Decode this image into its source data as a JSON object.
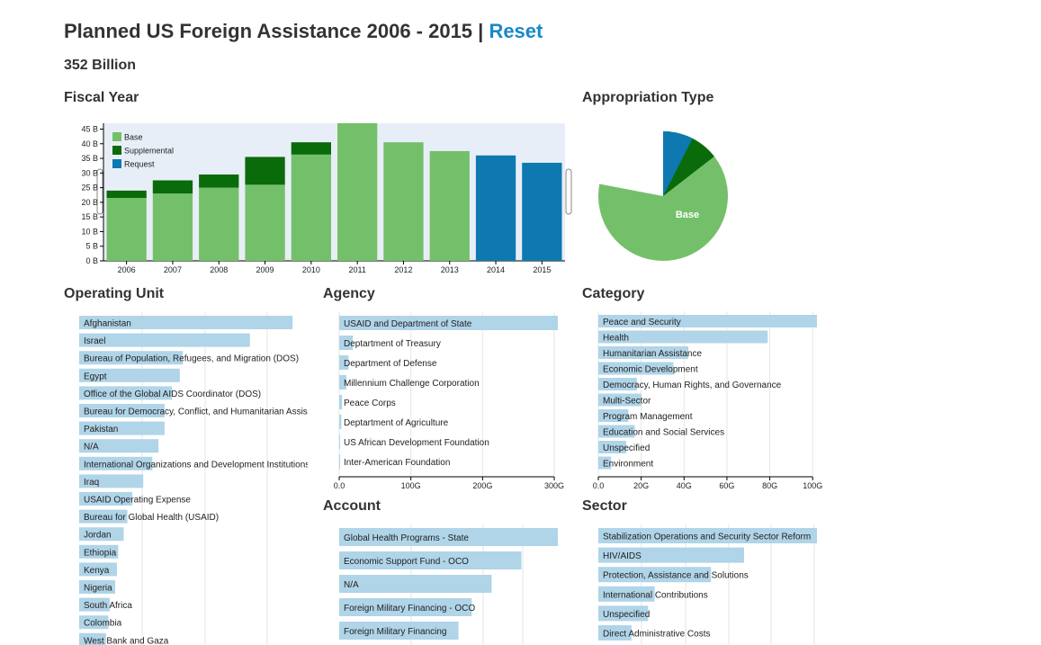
{
  "header": {
    "title": "Planned US Foreign Assistance 2006 - 2015 |",
    "reset_label": "Reset",
    "total": "352 Billion"
  },
  "colors": {
    "base": "#74c06a",
    "supplemental": "#0a6b0a",
    "request": "#0d79b0",
    "row_bar": "#b0d4e8",
    "chart_bg": "#e8eef8",
    "grid": "#e6e6e6"
  },
  "sections": {
    "fiscal_year": "Fiscal Year",
    "appropriation_type": "Appropriation Type",
    "operating_unit": "Operating Unit",
    "agency": "Agency",
    "category": "Category",
    "account": "Account",
    "sector": "Sector"
  },
  "chart_data": [
    {
      "id": "fiscal_year",
      "type": "bar",
      "stacked": true,
      "title": "Fiscal Year",
      "categories": [
        "2006",
        "2007",
        "2008",
        "2009",
        "2010",
        "2011",
        "2012",
        "2013",
        "2014",
        "2015"
      ],
      "series": [
        {
          "name": "Base",
          "values": [
            21.5,
            23,
            25,
            26,
            36.3,
            47,
            40.5,
            37.5,
            0,
            0
          ]
        },
        {
          "name": "Supplemental",
          "values": [
            2.5,
            4.5,
            4.5,
            9.5,
            4.2,
            0,
            0,
            0,
            0,
            0
          ]
        },
        {
          "name": "Request",
          "values": [
            0,
            0,
            0,
            0,
            0,
            0,
            0,
            0,
            36,
            33.5
          ]
        }
      ],
      "yticks": [
        "0 B",
        "5 B",
        "10 B",
        "15 B",
        "20 B",
        "25 B",
        "30 B",
        "35 B",
        "40 B",
        "45 B"
      ],
      "ylim": [
        0,
        47
      ],
      "legend": "top-left",
      "grid": false
    },
    {
      "id": "appropriation_type",
      "type": "pie",
      "title": "Appropriation Type",
      "labels": [
        "Base",
        "Supplemental",
        "Request"
      ],
      "values": [
        78,
        14.5,
        7.5
      ],
      "slice_labels": [
        "Base",
        "",
        "Request"
      ]
    },
    {
      "id": "operating_unit",
      "type": "bar",
      "orientation": "horizontal",
      "title": "Operating Unit",
      "categories": [
        "Afghanistan",
        "Israel",
        "Bureau of Population, Refugees, and Migration (DOS)",
        "Egypt",
        "Office of the Global AIDS Coordinator (DOS)",
        "Bureau for Democracy, Conflict, and Humanitarian Assis",
        "Pakistan",
        "N/A",
        "International Organizations and Development Institutions",
        "Iraq",
        "USAID Operating Expense",
        "Bureau for Global Health (USAID)",
        "Jordan",
        "Ethiopia",
        "Kenya",
        "Nigeria",
        "South Africa",
        "Colombia",
        "West Bank and Gaza"
      ],
      "values": [
        35,
        28,
        17,
        16.5,
        15.2,
        14,
        14,
        13,
        12,
        10.5,
        8.7,
        7.9,
        7.3,
        6.4,
        6.2,
        5.9,
        5,
        4.8,
        4.4
      ],
      "xlim": [
        0,
        36
      ],
      "grid": true
    },
    {
      "id": "agency",
      "type": "bar",
      "orientation": "horizontal",
      "title": "Agency",
      "categories": [
        "USAID and Department of State",
        "Deptartment of Treasury",
        "Department of Defense",
        "Millennium Challenge Corporation",
        "Peace Corps",
        "Deptartment of Agriculture",
        "US African Development Foundation",
        "Inter-American Foundation"
      ],
      "values": [
        305,
        19,
        13,
        10,
        4,
        3,
        1,
        0.5
      ],
      "xticks": [
        "0.0",
        "100G",
        "200G",
        "300G"
      ],
      "xlim": [
        0,
        305
      ],
      "grid": true
    },
    {
      "id": "category",
      "type": "bar",
      "orientation": "horizontal",
      "title": "Category",
      "categories": [
        "Peace and Security",
        "Health",
        "Humanitarian Assistance",
        "Economic Development",
        "Democracy, Human Rights, and Governance",
        "Multi-Sector",
        "Program Management",
        "Education and Social Services",
        "Unspecified",
        "Environment"
      ],
      "values": [
        102,
        79,
        42,
        35,
        18,
        20,
        14,
        17,
        13,
        6
      ],
      "xticks": [
        "0.0",
        "20G",
        "40G",
        "60G",
        "80G",
        "100G"
      ],
      "xlim": [
        0,
        102
      ],
      "grid": true
    },
    {
      "id": "account",
      "type": "bar",
      "orientation": "horizontal",
      "title": "Account",
      "categories": [
        "Global Health Programs - State",
        "Economic Support Fund - OCO",
        "N/A",
        "Foreign Military Financing - OCO",
        "Foreign Military Financing"
      ],
      "values": [
        66,
        55,
        46,
        40,
        36
      ],
      "xlim": [
        0,
        66
      ],
      "grid": true
    },
    {
      "id": "sector",
      "type": "bar",
      "orientation": "horizontal",
      "title": "Sector",
      "categories": [
        "Stabilization Operations and Security Sector Reform",
        "HIV/AIDS",
        "Protection, Assistance and Solutions",
        "International Contributions",
        "Unspecified",
        "Direct Administrative Costs"
      ],
      "values": [
        66,
        44,
        34,
        17,
        15,
        10
      ],
      "xlim": [
        0,
        66
      ],
      "grid": true
    }
  ]
}
